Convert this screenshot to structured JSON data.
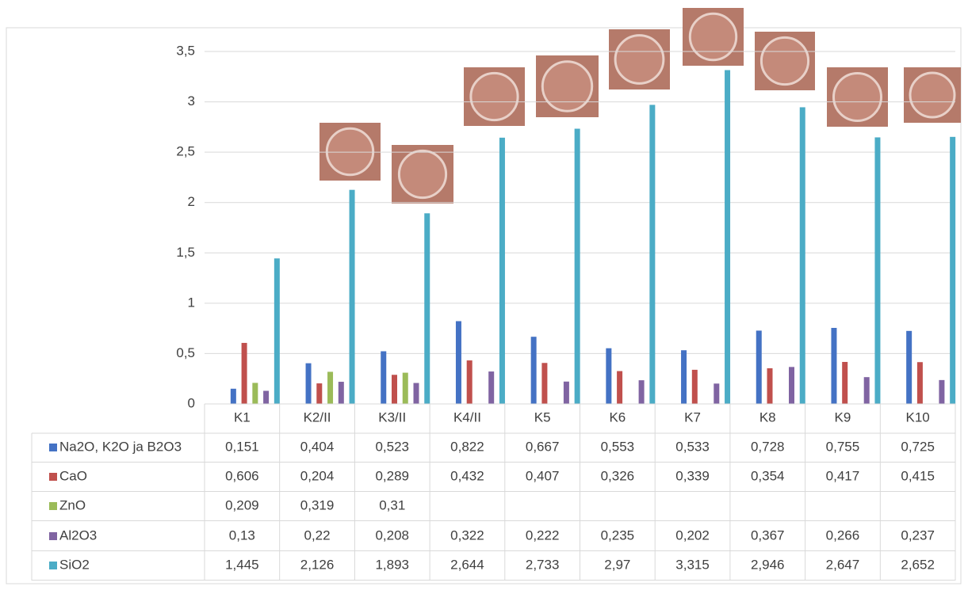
{
  "chart_data": {
    "type": "bar",
    "categories": [
      "K1",
      "K2/II",
      "K3/II",
      "K4/II",
      "K5",
      "K6",
      "K7",
      "K8",
      "K9",
      "K10"
    ],
    "ylim": [
      0,
      3.5
    ],
    "yticks": [
      0,
      {
        "value": 0.5,
        "label": "0,5"
      },
      1,
      {
        "value": 1.5,
        "label": "1,5"
      },
      2,
      {
        "value": 2.5,
        "label": "2,5"
      },
      3,
      {
        "value": 3.5,
        "label": "3,5"
      }
    ],
    "grid": true,
    "series": [
      {
        "name": "Na2O, K2O ja B2O3",
        "color": "#4472c4",
        "values": [
          0.151,
          0.404,
          0.523,
          0.822,
          0.667,
          0.553,
          0.533,
          0.728,
          0.755,
          0.725
        ],
        "value_labels": [
          "0,151",
          "0,404",
          "0,523",
          "0,822",
          "0,667",
          "0,553",
          "0,533",
          "0,728",
          "0,755",
          "0,725"
        ]
      },
      {
        "name": "CaO",
        "color": "#c0504d",
        "values": [
          0.606,
          0.204,
          0.289,
          0.432,
          0.407,
          0.326,
          0.339,
          0.354,
          0.417,
          0.415
        ],
        "value_labels": [
          "0,606",
          "0,204",
          "0,289",
          "0,432",
          "0,407",
          "0,326",
          "0,339",
          "0,354",
          "0,417",
          "0,415"
        ]
      },
      {
        "name": "ZnO",
        "color": "#9bbb59",
        "values": [
          0.209,
          0.319,
          0.31,
          null,
          null,
          null,
          null,
          null,
          null,
          null
        ],
        "value_labels": [
          "0,209",
          "0,319",
          "0,31",
          null,
          null,
          null,
          null,
          null,
          null,
          null
        ]
      },
      {
        "name": "Al2O3",
        "color": "#8064a2",
        "values": [
          0.13,
          0.22,
          0.208,
          0.322,
          0.222,
          0.235,
          0.202,
          0.367,
          0.266,
          0.237
        ],
        "value_labels": [
          "0,13",
          "0,22",
          "0,208",
          "0,322",
          "0,222",
          "0,235",
          "0,202",
          "0,367",
          "0,266",
          "0,237"
        ]
      },
      {
        "name": "SiO2",
        "color": "#4bacc6",
        "values": [
          1.445,
          2.126,
          1.893,
          2.644,
          2.733,
          2.97,
          3.315,
          2.946,
          2.647,
          2.652
        ],
        "value_labels": [
          "1,445",
          "2,126",
          "1,893",
          "2,644",
          "2,733",
          "2,97",
          "3,315",
          "2,946",
          "2,647",
          "2,652"
        ]
      }
    ]
  }
}
